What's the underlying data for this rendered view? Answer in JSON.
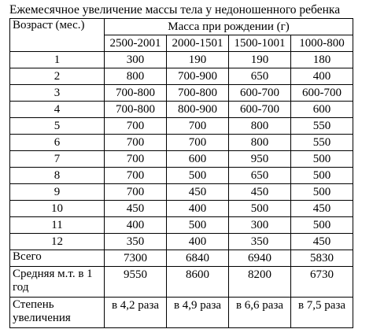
{
  "title": "Ежемесячное увеличение массы тела у недоношенного ребенка",
  "table": {
    "age_header": "Возраст (мес.)",
    "mass_header": "Масса при рождении (г)",
    "columns": [
      "2500-2001",
      "2000-1501",
      "1500-1001",
      "1000-800"
    ],
    "rows": [
      {
        "label": "1",
        "values": [
          "300",
          "190",
          "190",
          "180"
        ]
      },
      {
        "label": "2",
        "values": [
          "800",
          "700-900",
          "650",
          "400"
        ]
      },
      {
        "label": "3",
        "values": [
          "700-800",
          "700-800",
          "600-700",
          "600-700"
        ]
      },
      {
        "label": "4",
        "values": [
          "700-800",
          "800-900",
          "600-700",
          "600"
        ]
      },
      {
        "label": "5",
        "values": [
          "700",
          "700",
          "800",
          "550"
        ]
      },
      {
        "label": "6",
        "values": [
          "700",
          "700",
          "800",
          "550"
        ]
      },
      {
        "label": "7",
        "values": [
          "700",
          "600",
          "950",
          "500"
        ]
      },
      {
        "label": "8",
        "values": [
          "700",
          "500",
          "650",
          "500"
        ]
      },
      {
        "label": "9",
        "values": [
          "700",
          "450",
          "450",
          "500"
        ]
      },
      {
        "label": "10",
        "values": [
          "450",
          "400",
          "500",
          "450"
        ]
      },
      {
        "label": "11",
        "values": [
          "400",
          "500",
          "300",
          "500"
        ]
      },
      {
        "label": "12",
        "values": [
          "350",
          "400",
          "350",
          "450"
        ]
      }
    ],
    "total": {
      "label": "Всего",
      "values": [
        "7300",
        "6840",
        "6940",
        "5830"
      ]
    },
    "average": {
      "label": "Средняя м.т. в 1 год",
      "values": [
        "9550",
        "8600",
        "8200",
        "6730"
      ]
    },
    "increase": {
      "label": "Степень увеличения",
      "values": [
        "в 4,2 раза",
        "в 4,9 раза",
        "в 6,6 раза",
        "в 7,5 раза"
      ]
    }
  }
}
